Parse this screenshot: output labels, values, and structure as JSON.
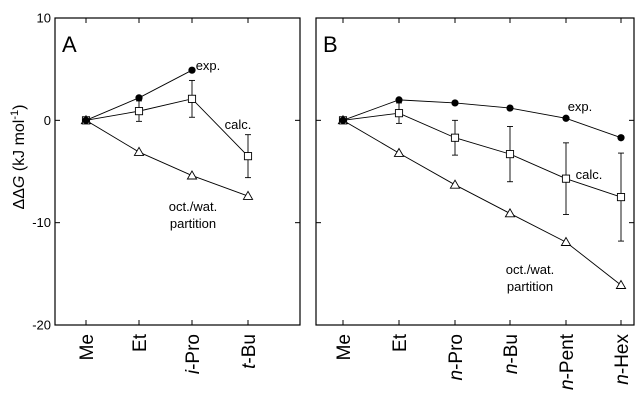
{
  "ylabel": {
    "prefix": "ΔΔ",
    "var": "G",
    "mid": " (kJ mol",
    "sup": "-1",
    "end": ")"
  },
  "chart_data": [
    {
      "type": "line",
      "panel": "A",
      "categories": [
        {
          "label": "Me",
          "italic": "",
          "rest": "Me"
        },
        {
          "label": "Et",
          "italic": "",
          "rest": "Et"
        },
        {
          "label": "i-Pro",
          "italic": "i",
          "rest": "-Pro"
        },
        {
          "label": "t-Bu",
          "italic": "t",
          "rest": "-Bu"
        }
      ],
      "ylim": [
        -20,
        10
      ],
      "yticks": [
        10,
        0,
        -10,
        -20
      ],
      "series": [
        {
          "name": "exp.",
          "marker": "filled-circle",
          "values": [
            0,
            2.2,
            4.9,
            null
          ]
        },
        {
          "name": "calc.",
          "marker": "open-square",
          "values": [
            0,
            0.9,
            2.1,
            -3.5
          ],
          "errors": [
            0,
            1.0,
            1.8,
            2.1
          ]
        },
        {
          "name": "oct./wat. partition",
          "marker": "open-triangle",
          "values": [
            0,
            -3.1,
            -5.4,
            -7.4
          ]
        }
      ],
      "annotations": [
        {
          "series": "exp.",
          "lines": [
            "exp."
          ]
        },
        {
          "series": "calc.",
          "lines": [
            "calc."
          ]
        },
        {
          "series": "oct./wat. partition",
          "lines": [
            "oct./wat.",
            "partition"
          ]
        }
      ]
    },
    {
      "type": "line",
      "panel": "B",
      "categories": [
        {
          "label": "Me",
          "italic": "",
          "rest": "Me"
        },
        {
          "label": "Et",
          "italic": "",
          "rest": "Et"
        },
        {
          "label": "n-Pro",
          "italic": "n",
          "rest": "-Pro"
        },
        {
          "label": "n-Bu",
          "italic": "n",
          "rest": "-Bu"
        },
        {
          "label": "n-Pent",
          "italic": "n",
          "rest": "-Pent"
        },
        {
          "label": "n-Hex",
          "italic": "n",
          "rest": "-Hex"
        }
      ],
      "ylim": [
        -20,
        10
      ],
      "yticks": [
        10,
        0,
        -10,
        -20
      ],
      "series": [
        {
          "name": "exp.",
          "marker": "filled-circle",
          "values": [
            0,
            2.0,
            1.7,
            1.2,
            0.2,
            -1.7
          ]
        },
        {
          "name": "calc.",
          "marker": "open-square",
          "values": [
            0,
            0.7,
            -1.7,
            -3.3,
            -5.7,
            -7.5
          ],
          "errors": [
            0,
            1.0,
            1.7,
            2.7,
            3.5,
            4.3
          ]
        },
        {
          "name": "oct./wat. partition",
          "marker": "open-triangle",
          "values": [
            0,
            -3.2,
            -6.3,
            -9.1,
            -11.9,
            -16.1
          ]
        }
      ],
      "annotations": [
        {
          "series": "exp.",
          "lines": [
            "exp."
          ]
        },
        {
          "series": "calc.",
          "lines": [
            "calc."
          ]
        },
        {
          "series": "oct./wat. partition",
          "lines": [
            "oct./wat.",
            "partition"
          ]
        }
      ]
    }
  ]
}
